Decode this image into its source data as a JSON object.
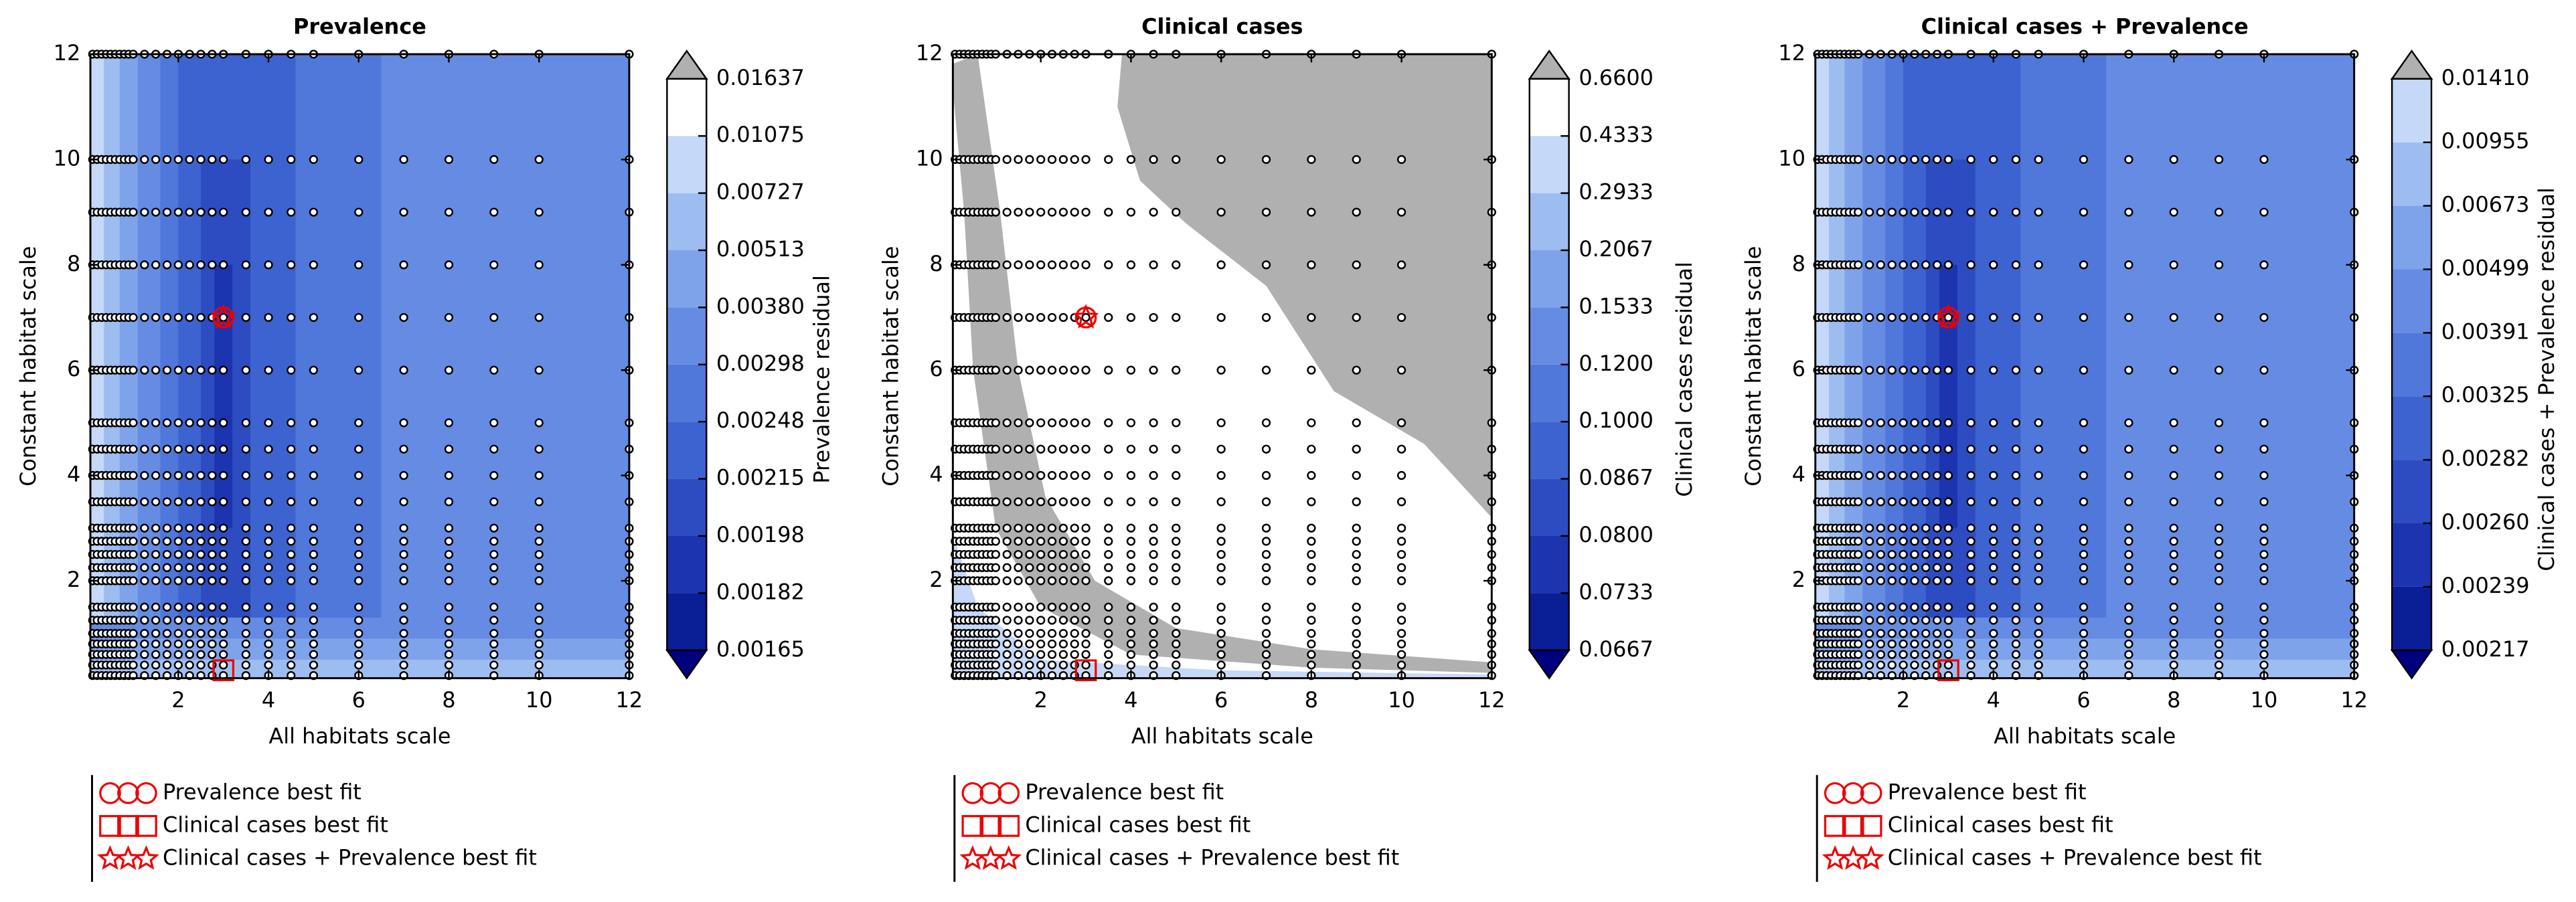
{
  "chart_data": [
    {
      "type": "contour",
      "title": "Prevalence",
      "x_label": "All habitats scale",
      "y_label": "Constant habitat scale",
      "colorbar_label": "Prevalence residual",
      "xlim": [
        0.05,
        12
      ],
      "ylim": [
        0.15,
        12
      ],
      "xticks": [
        2,
        4,
        6,
        8,
        10,
        12
      ],
      "yticks": [
        2,
        4,
        6,
        8,
        10,
        12
      ],
      "cbar_ticks": [
        {
          "value": 0.00165,
          "label": "0.00165"
        },
        {
          "value": 0.00182,
          "label": "0.00182"
        },
        {
          "value": 0.00198,
          "label": "0.00198"
        },
        {
          "value": 0.00215,
          "label": "0.00215"
        },
        {
          "value": 0.00248,
          "label": "0.00248"
        },
        {
          "value": 0.00298,
          "label": "0.00298"
        },
        {
          "value": 0.0038,
          "label": "0.00380"
        },
        {
          "value": 0.00513,
          "label": "0.00513"
        },
        {
          "value": 0.00727,
          "label": "0.00727"
        },
        {
          "value": 0.01075,
          "label": "0.01075"
        },
        {
          "value": 0.01637,
          "label": "0.01637"
        }
      ],
      "colors": [
        "#0a1e96",
        "#1c34b0",
        "#2d4cc2",
        "#3d63d0",
        "#5077da",
        "#658ce2",
        "#7ea3ea",
        "#9dbdf1",
        "#c5d8f8",
        "#ffffff"
      ],
      "under_color": "#00007f",
      "over_color": "#b0b0b0",
      "grid_x": [
        0.1,
        0.2,
        0.3,
        0.4,
        0.5,
        0.6,
        0.7,
        0.8,
        0.9,
        1,
        1.25,
        1.5,
        1.75,
        2,
        2.25,
        2.5,
        2.75,
        3,
        3.5,
        4,
        4.5,
        5,
        6,
        7,
        8,
        9,
        10,
        12
      ],
      "grid_y": [
        0.2,
        0.4,
        0.6,
        0.8,
        1,
        1.25,
        1.5,
        2,
        2.25,
        2.5,
        2.75,
        3,
        3.5,
        4,
        4.5,
        5,
        6,
        7,
        8,
        9,
        10,
        12
      ],
      "markers": [
        {
          "name": "Prevalence best fit",
          "symbol": "circle",
          "x": 3,
          "y": 7
        },
        {
          "name": "Clinical cases best fit",
          "symbol": "square",
          "x": 3,
          "y": 0.3
        },
        {
          "name": "Clinical cases + Prevalence best fit",
          "symbol": "star",
          "x": 3,
          "y": 7
        }
      ]
    },
    {
      "type": "contour",
      "title": "Clinical cases",
      "x_label": "All habitats scale",
      "y_label": "Constant habitat scale",
      "colorbar_label": "Clinical cases residual",
      "xlim": [
        0.05,
        12
      ],
      "ylim": [
        0.15,
        12
      ],
      "xticks": [
        2,
        4,
        6,
        8,
        10,
        12
      ],
      "yticks": [
        2,
        4,
        6,
        8,
        10,
        12
      ],
      "cbar_ticks": [
        {
          "value": 0.0667,
          "label": "0.0667"
        },
        {
          "value": 0.0733,
          "label": "0.0733"
        },
        {
          "value": 0.08,
          "label": "0.0800"
        },
        {
          "value": 0.0867,
          "label": "0.0867"
        },
        {
          "value": 0.1,
          "label": "0.1000"
        },
        {
          "value": 0.12,
          "label": "0.1200"
        },
        {
          "value": 0.1533,
          "label": "0.1533"
        },
        {
          "value": 0.2067,
          "label": "0.2067"
        },
        {
          "value": 0.2933,
          "label": "0.2933"
        },
        {
          "value": 0.4333,
          "label": "0.4333"
        },
        {
          "value": 0.66,
          "label": "0.6600"
        }
      ],
      "colors": [
        "#0a1e96",
        "#1c34b0",
        "#2d4cc2",
        "#3d63d0",
        "#5077da",
        "#658ce2",
        "#7ea3ea",
        "#9dbdf1",
        "#c5d8f8",
        "#ffffff"
      ],
      "under_color": "#00007f",
      "over_color": "#b0b0b0",
      "grid_x": [
        0.1,
        0.2,
        0.3,
        0.4,
        0.5,
        0.6,
        0.7,
        0.8,
        0.9,
        1,
        1.25,
        1.5,
        1.75,
        2,
        2.25,
        2.5,
        2.75,
        3,
        3.5,
        4,
        4.5,
        5,
        6,
        7,
        8,
        9,
        10,
        12
      ],
      "grid_y": [
        0.2,
        0.4,
        0.6,
        0.8,
        1,
        1.25,
        1.5,
        2,
        2.25,
        2.5,
        2.75,
        3,
        3.5,
        4,
        4.5,
        5,
        6,
        7,
        8,
        9,
        10,
        12
      ],
      "markers": [
        {
          "name": "Prevalence best fit",
          "symbol": "circle",
          "x": 3,
          "y": 7
        },
        {
          "name": "Clinical cases best fit",
          "symbol": "square",
          "x": 3,
          "y": 0.3
        },
        {
          "name": "Clinical cases + Prevalence best fit",
          "symbol": "star",
          "x": 3,
          "y": 7
        }
      ]
    },
    {
      "type": "contour",
      "title": "Clinical cases + Prevalence",
      "x_label": "All habitats scale",
      "y_label": "Constant habitat scale",
      "colorbar_label": "Clinical cases + Prevalence residual",
      "xlim": [
        0.05,
        12
      ],
      "ylim": [
        0.15,
        12
      ],
      "xticks": [
        2,
        4,
        6,
        8,
        10,
        12
      ],
      "yticks": [
        2,
        4,
        6,
        8,
        10,
        12
      ],
      "cbar_ticks": [
        {
          "value": 0.00217,
          "label": "0.00217"
        },
        {
          "value": 0.00239,
          "label": "0.00239"
        },
        {
          "value": 0.0026,
          "label": "0.00260"
        },
        {
          "value": 0.00282,
          "label": "0.00282"
        },
        {
          "value": 0.00325,
          "label": "0.00325"
        },
        {
          "value": 0.00391,
          "label": "0.00391"
        },
        {
          "value": 0.00499,
          "label": "0.00499"
        },
        {
          "value": 0.00673,
          "label": "0.00673"
        },
        {
          "value": 0.00955,
          "label": "0.00955"
        },
        {
          "value": 0.0141,
          "label": "0.01410"
        }
      ],
      "colors": [
        "#0a1e96",
        "#1c34b0",
        "#2d4cc2",
        "#3d63d0",
        "#5077da",
        "#658ce2",
        "#7ea3ea",
        "#9dbdf1",
        "#c5d8f8"
      ],
      "under_color": "#00007f",
      "over_color": "#b0b0b0",
      "grid_x": [
        0.1,
        0.2,
        0.3,
        0.4,
        0.5,
        0.6,
        0.7,
        0.8,
        0.9,
        1,
        1.25,
        1.5,
        1.75,
        2,
        2.25,
        2.5,
        2.75,
        3,
        3.5,
        4,
        4.5,
        5,
        6,
        7,
        8,
        9,
        10,
        12
      ],
      "grid_y": [
        0.2,
        0.4,
        0.6,
        0.8,
        1,
        1.25,
        1.5,
        2,
        2.25,
        2.5,
        2.75,
        3,
        3.5,
        4,
        4.5,
        5,
        6,
        7,
        8,
        9,
        10,
        12
      ],
      "markers": [
        {
          "name": "Prevalence best fit",
          "symbol": "circle",
          "x": 3,
          "y": 7
        },
        {
          "name": "Clinical cases best fit",
          "symbol": "square",
          "x": 3,
          "y": 0.3
        },
        {
          "name": "Clinical cases + Prevalence best fit",
          "symbol": "star",
          "x": 3,
          "y": 7
        }
      ]
    }
  ]
}
